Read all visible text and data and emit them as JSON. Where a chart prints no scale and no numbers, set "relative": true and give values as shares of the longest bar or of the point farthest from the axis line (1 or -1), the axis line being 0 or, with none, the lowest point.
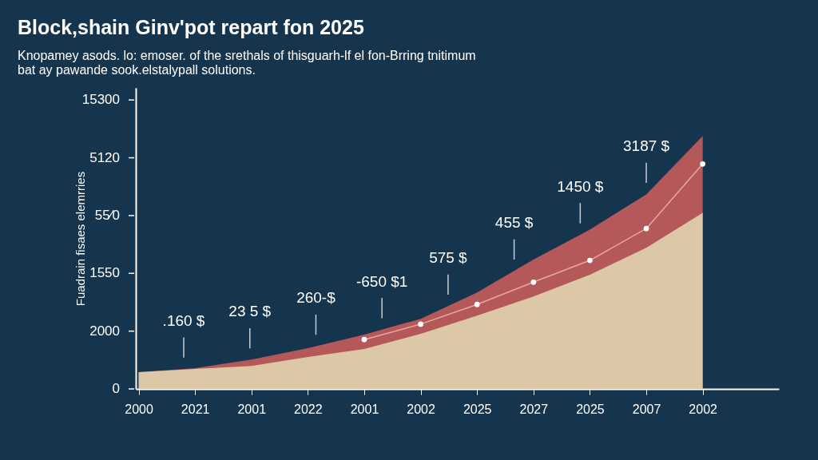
{
  "chart_data": {
    "type": "area",
    "title": "Block,shain Ginv'pot repart fon 2025",
    "subtitle": "Knopamey asods. lo: emoser. of the srethals of thisguarh-lf el fon-Brring tnitimum\nbat ay pawande sook.elstalypall solutions.",
    "ylabel": "Fuadrain fisaes elemrries",
    "relative": true,
    "categories": [
      "2000",
      "2021",
      "2001",
      "2022",
      "2001",
      "2002",
      "2025",
      "2027",
      "2025",
      "2007",
      "2002"
    ],
    "series": [
      {
        "type": "area",
        "color": "#b5585a",
        "values": [
          0.066,
          0.082,
          0.116,
          0.161,
          0.215,
          0.277,
          0.381,
          0.511,
          0.63,
          0.769,
          1.0
        ]
      },
      {
        "type": "area",
        "color": "#dcc8a6",
        "values": [
          0.066,
          0.079,
          0.091,
          0.126,
          0.158,
          0.218,
          0.29,
          0.365,
          0.451,
          0.558,
          0.696
        ]
      },
      {
        "type": "line",
        "color": "#e6a9a6",
        "marker": "circle",
        "values": [
          null,
          null,
          null,
          null,
          0.195,
          0.256,
          0.334,
          0.422,
          0.508,
          0.634,
          0.889
        ]
      }
    ],
    "annotations": [
      ".160 $",
      "23 5 $",
      "260-$",
      "-650 $1",
      "575 $",
      "455 $",
      "1450 $",
      "3187 $",
      "15300",
      "5120",
      "55⁄0",
      "1550",
      "2000",
      "0"
    ]
  }
}
